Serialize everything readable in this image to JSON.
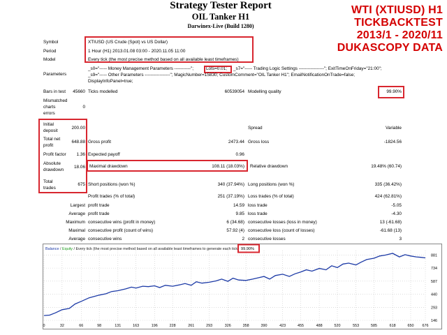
{
  "header": {
    "title": "Strategy Tester Report",
    "subtitle": "OIL Tanker H1",
    "build": "Darwinex-Live (Build 1280)"
  },
  "promo": {
    "line1": "WTI (XTIUSD) H1",
    "line2": "TICKBACKTEST",
    "line3": "2013/1 - 2020/11",
    "line4": "DUKASCOPY DATA"
  },
  "info": {
    "symbol_label": "Symbol",
    "symbol_value": "XTIUSD (US Crude (Spot) vs US Dollar)",
    "period_label": "Period",
    "period_value": "1 Hour (H1) 2013.01.08 03:00 - 2020.11.05 11:00",
    "model_label": "Model",
    "model_value": "Every tick (the most precise method based on all available least timeframes)",
    "parameters_label": "Parameters",
    "parameters_line1a": "_s0=\"----- Money Management Parameters -----------\";",
    "parameters_lots": "Lots=0.01;",
    "parameters_line1b": "_s7=\"----- Trading Logic Settings -----------------\"; ExitTimeOnFriday=\"21:00\";",
    "parameters_line2": "_s9=\"----- Other Parameters -----------------\"; MagicNumber=15830; CustomComment=\"OIL Tanker H1\"; EmailNotificationOnTrade=false;",
    "parameters_line3": "DisplayInfoPanel=true;"
  },
  "stats": {
    "bars_label": "Bars in test",
    "bars_value": "45660",
    "ticks_label": "Ticks modelled",
    "ticks_value": "60539054",
    "quality_label": "Modelling quality",
    "quality_value": "99.90%",
    "mismatched_label_1": "Mismatched",
    "mismatched_label_2": "charts",
    "mismatched_label_3": "errors",
    "mismatched_value": "0",
    "deposit_label_1": "Initial",
    "deposit_label_2": "deposit",
    "deposit_value": "200.00",
    "spread_label": "Spread",
    "spread_value": "Variable",
    "net_label_1": "Total net",
    "net_label_2": "profit",
    "net_value": "648.88",
    "gross_profit_label": "Gross profit",
    "gross_profit_value": "2473.44",
    "gross_loss_label": "Gross loss",
    "gross_loss_value": "-1824.56",
    "pf_label": "Profit factor",
    "pf_value": "1.36",
    "payoff_label": "Expected payoff",
    "payoff_value": "0.96",
    "abs_dd_label_1": "Absolute",
    "abs_dd_label_2": "drawdown",
    "abs_dd_value": "18.06",
    "max_dd_label": "Maximal drawdown",
    "max_dd_value": "108.11 (18.03%)",
    "rel_dd_label": "Relative drawdown",
    "rel_dd_value": "19.48% (60.74)",
    "trades_label_1": "Total",
    "trades_label_2": "trades",
    "trades_value": "675",
    "short_label": "Short positions (won %)",
    "short_value": "340 (37.94%)",
    "long_label": "Long positions (won %)",
    "long_value": "335 (36.42%)",
    "pt_label": "Profit trades (% of total)",
    "pt_value": "251 (37.19%)",
    "lt_label": "Loss trades (% of total)",
    "lt_value": "424 (62.81%)",
    "largest_label": "Largest",
    "largest_profit_label": "profit trade",
    "largest_profit_value": "14.59",
    "largest_loss_label": "loss trade",
    "largest_loss_value": "-5.05",
    "average_label": "Average",
    "average_profit_label": "profit trade",
    "average_profit_value": "9.85",
    "average_loss_label": "loss trade",
    "average_loss_value": "-4.30",
    "maximum_label": "Maximum",
    "max_wins_label": "consecutive wins (profit in money)",
    "max_wins_value": "6 (34.68)",
    "max_losses_label": "consecutive losses (loss in money)",
    "max_losses_value": "13 (-61.68)",
    "maximal_label": "Maximal",
    "maximal_profit_label": "consecutive profit (count of wins)",
    "maximal_profit_value": "57.92 (4)",
    "maximal_loss_label": "consecutive loss (count of losses)",
    "maximal_loss_value": "-61.68 (13)",
    "average2_label": "Average",
    "avg_wins_label": "consecutive wins",
    "avg_wins_value": "2",
    "avg_losses_label": "consecutive losses",
    "avg_losses_value": "3"
  },
  "chart_header": {
    "balance": "Balance",
    "sep": " / ",
    "equity": "Equity",
    "rest": " / Every tick (the most precise method based on all available least timeframes to generate each tick)",
    "quality": "99.90%"
  },
  "chart_data": {
    "type": "line",
    "title": "",
    "xlabel": "",
    "ylabel": "",
    "x_ticks": [
      0,
      32,
      66,
      98,
      131,
      163,
      196,
      228,
      261,
      293,
      326,
      358,
      390,
      423,
      455,
      488,
      520,
      553,
      585,
      618,
      650,
      676
    ],
    "y_ticks": [
      146,
      293,
      440,
      587,
      734,
      881
    ],
    "xlim": [
      0,
      676
    ],
    "ylim": [
      146,
      900
    ],
    "grid": true,
    "series": [
      {
        "name": "Balance",
        "color": "#1c3aa6",
        "x": [
          0,
          10,
          20,
          32,
          45,
          55,
          66,
          80,
          98,
          110,
          120,
          131,
          145,
          155,
          163,
          175,
          185,
          196,
          205,
          215,
          228,
          240,
          250,
          261,
          270,
          280,
          293,
          305,
          315,
          326,
          335,
          345,
          358,
          370,
          380,
          390,
          400,
          410,
          423,
          435,
          445,
          455,
          465,
          475,
          488,
          500,
          510,
          520,
          530,
          540,
          553,
          562,
          572,
          585,
          595,
          605,
          618,
          630,
          640,
          650,
          660,
          668,
          676
        ],
        "y": [
          200,
          205,
          230,
          265,
          280,
          330,
          360,
          400,
          430,
          445,
          470,
          480,
          500,
          520,
          510,
          530,
          525,
          535,
          515,
          540,
          530,
          545,
          560,
          540,
          580,
          565,
          575,
          590,
          610,
          585,
          620,
          600,
          595,
          610,
          625,
          640,
          610,
          650,
          665,
          640,
          670,
          690,
          715,
          700,
          730,
          715,
          760,
          740,
          780,
          790,
          770,
          800,
          830,
          845,
          870,
          880,
          900,
          860,
          885,
          870,
          860,
          855,
          849
        ]
      }
    ]
  },
  "colors": {
    "highlight_box": "#d8262f",
    "promo_text": "#d40000",
    "balance_line": "#1c3aa6",
    "equity_label": "#1a9a1a"
  }
}
